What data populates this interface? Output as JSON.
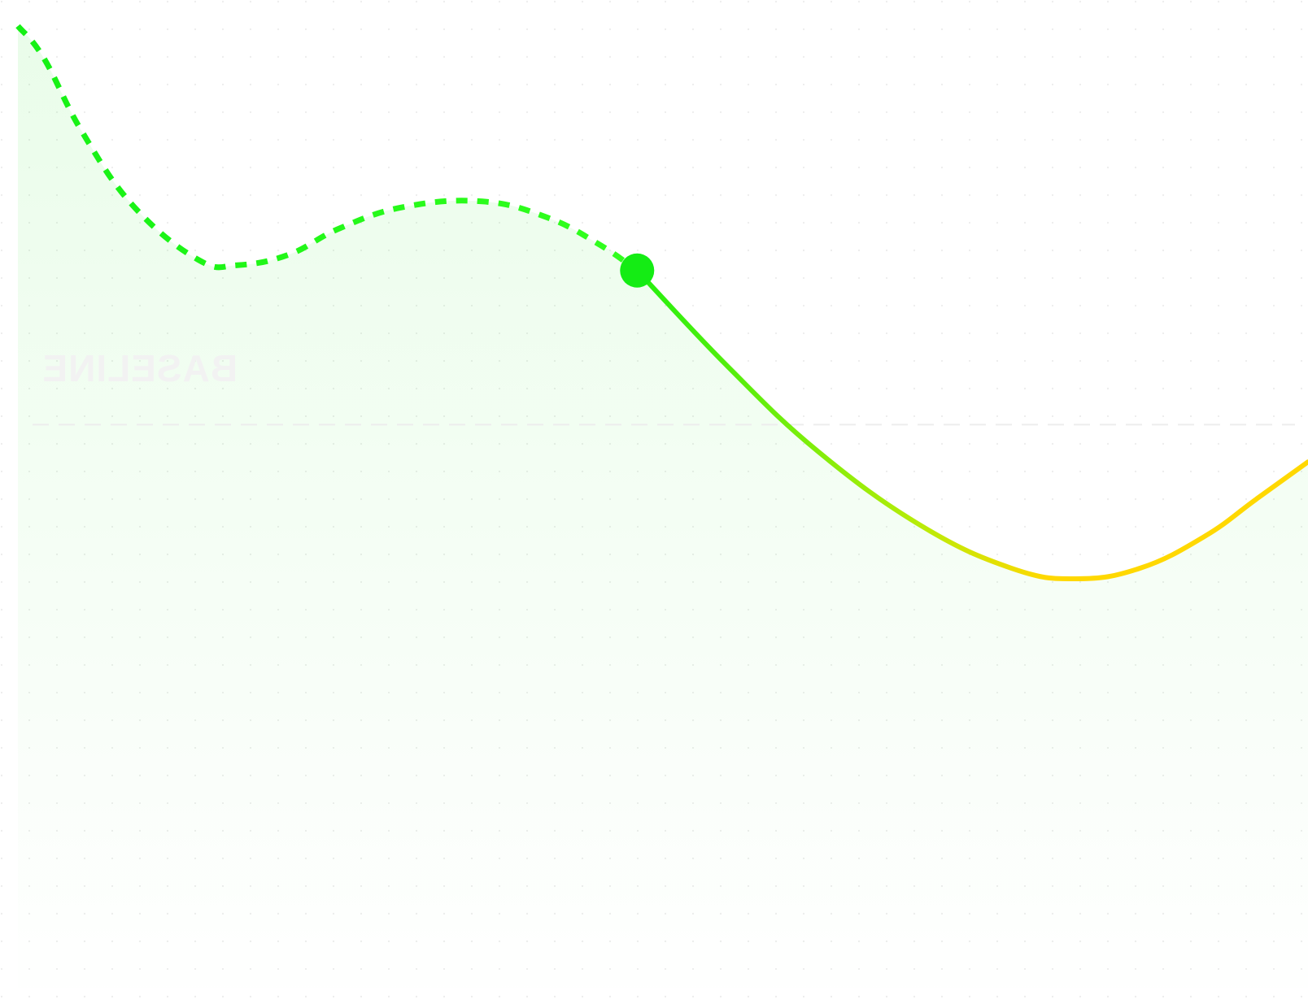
{
  "chart_data": {
    "type": "line",
    "title": "",
    "xlabel": "",
    "ylabel": "",
    "grid": "dotted",
    "xlim": [
      0,
      100
    ],
    "ylim": [
      0,
      100
    ],
    "series": [
      {
        "style": "dashed",
        "color_start": "#14f014",
        "color_end": "#32ff1e",
        "points": [
          [
            0,
            96
          ],
          [
            2,
            93
          ],
          [
            5,
            86
          ],
          [
            9,
            79
          ],
          [
            14,
            74
          ],
          [
            17,
            73.5
          ],
          [
            21,
            74.5
          ],
          [
            25,
            77
          ],
          [
            30,
            79
          ],
          [
            36,
            79.5
          ],
          [
            41,
            78
          ],
          [
            45,
            75.5
          ],
          [
            48,
            73
          ]
        ]
      },
      {
        "style": "solid",
        "color_start": "#10f010",
        "color_end": "#ffd800",
        "points": [
          [
            48,
            73
          ],
          [
            55,
            64
          ],
          [
            62,
            56
          ],
          [
            70,
            49
          ],
          [
            77,
            45
          ],
          [
            82,
            44
          ],
          [
            87,
            45
          ],
          [
            92,
            48
          ],
          [
            96,
            51.5
          ],
          [
            100,
            55
          ]
        ]
      }
    ],
    "marker": {
      "x": 48,
      "y": 73,
      "color": "#14ec14"
    },
    "area_fill": {
      "color": "#28e628",
      "opacity_top": 0.1,
      "opacity_bottom": 0.0
    },
    "reference_line": {
      "y": 58.5,
      "label": "BASELINE",
      "style": "dashed",
      "mirrored": true
    }
  }
}
